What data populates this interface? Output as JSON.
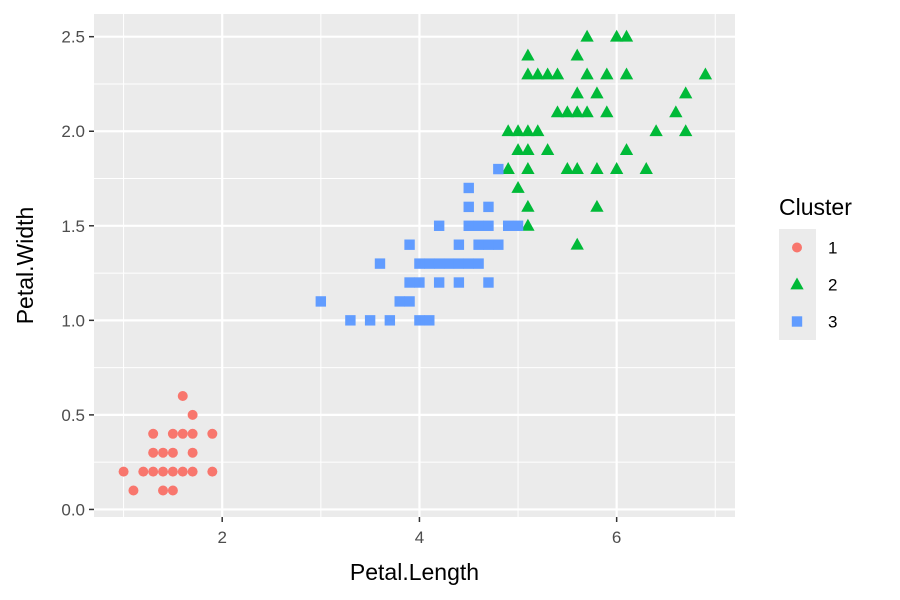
{
  "chart_data": {
    "type": "scatter",
    "title": "",
    "xlabel": "Petal.Length",
    "ylabel": "Petal.Width",
    "xlim": [
      0.7,
      7.2
    ],
    "ylim": [
      -0.04,
      2.62
    ],
    "x_ticks": [
      2,
      4,
      6
    ],
    "y_ticks": [
      0.0,
      0.5,
      1.0,
      1.5,
      2.0,
      2.5
    ],
    "x_tick_labels": [
      "2",
      "4",
      "6"
    ],
    "y_tick_labels": [
      "0.0",
      "0.5",
      "1.0",
      "1.5",
      "2.0",
      "2.5"
    ],
    "grid": true,
    "background": "#ebebeb",
    "legend": {
      "title": "Cluster",
      "placement": "right",
      "entries": [
        {
          "label": "1",
          "color": "#f8766d",
          "shape": "circle"
        },
        {
          "label": "2",
          "color": "#00ba38",
          "shape": "triangle"
        },
        {
          "label": "3",
          "color": "#619cff",
          "shape": "square"
        }
      ]
    },
    "series": [
      {
        "name": "1",
        "color": "#f8766d",
        "shape": "circle",
        "points": [
          [
            1.0,
            0.2
          ],
          [
            1.1,
            0.1
          ],
          [
            1.2,
            0.2
          ],
          [
            1.3,
            0.2
          ],
          [
            1.3,
            0.3
          ],
          [
            1.3,
            0.4
          ],
          [
            1.4,
            0.1
          ],
          [
            1.4,
            0.2
          ],
          [
            1.4,
            0.3
          ],
          [
            1.5,
            0.1
          ],
          [
            1.5,
            0.2
          ],
          [
            1.5,
            0.3
          ],
          [
            1.5,
            0.4
          ],
          [
            1.6,
            0.2
          ],
          [
            1.6,
            0.4
          ],
          [
            1.6,
            0.6
          ],
          [
            1.7,
            0.2
          ],
          [
            1.7,
            0.3
          ],
          [
            1.7,
            0.4
          ],
          [
            1.7,
            0.5
          ],
          [
            1.9,
            0.2
          ],
          [
            1.9,
            0.4
          ]
        ]
      },
      {
        "name": "2",
        "color": "#00ba38",
        "shape": "triangle",
        "points": [
          [
            4.9,
            1.8
          ],
          [
            4.9,
            2.0
          ],
          [
            5.0,
            1.7
          ],
          [
            5.0,
            1.9
          ],
          [
            5.0,
            2.0
          ],
          [
            5.1,
            1.5
          ],
          [
            5.1,
            1.6
          ],
          [
            5.1,
            1.8
          ],
          [
            5.1,
            1.9
          ],
          [
            5.1,
            2.0
          ],
          [
            5.1,
            2.3
          ],
          [
            5.1,
            2.4
          ],
          [
            5.2,
            2.0
          ],
          [
            5.2,
            2.3
          ],
          [
            5.3,
            1.9
          ],
          [
            5.3,
            2.3
          ],
          [
            5.4,
            2.1
          ],
          [
            5.4,
            2.3
          ],
          [
            5.5,
            1.8
          ],
          [
            5.5,
            2.1
          ],
          [
            5.6,
            1.4
          ],
          [
            5.6,
            1.8
          ],
          [
            5.6,
            2.1
          ],
          [
            5.6,
            2.2
          ],
          [
            5.6,
            2.4
          ],
          [
            5.7,
            2.1
          ],
          [
            5.7,
            2.3
          ],
          [
            5.7,
            2.5
          ],
          [
            5.8,
            1.6
          ],
          [
            5.8,
            1.8
          ],
          [
            5.8,
            2.2
          ],
          [
            5.9,
            2.1
          ],
          [
            5.9,
            2.3
          ],
          [
            6.0,
            1.8
          ],
          [
            6.0,
            2.5
          ],
          [
            6.1,
            1.9
          ],
          [
            6.1,
            2.3
          ],
          [
            6.1,
            2.5
          ],
          [
            6.3,
            1.8
          ],
          [
            6.4,
            2.0
          ],
          [
            6.6,
            2.1
          ],
          [
            6.7,
            2.0
          ],
          [
            6.7,
            2.2
          ],
          [
            6.9,
            2.3
          ]
        ]
      },
      {
        "name": "3",
        "color": "#619cff",
        "shape": "square",
        "points": [
          [
            3.0,
            1.1
          ],
          [
            3.3,
            1.0
          ],
          [
            3.5,
            1.0
          ],
          [
            3.6,
            1.3
          ],
          [
            3.7,
            1.0
          ],
          [
            3.8,
            1.1
          ],
          [
            3.9,
            1.1
          ],
          [
            3.9,
            1.2
          ],
          [
            3.9,
            1.4
          ],
          [
            4.0,
            1.0
          ],
          [
            4.0,
            1.2
          ],
          [
            4.0,
            1.3
          ],
          [
            4.1,
            1.0
          ],
          [
            4.1,
            1.3
          ],
          [
            4.2,
            1.2
          ],
          [
            4.2,
            1.3
          ],
          [
            4.2,
            1.5
          ],
          [
            4.3,
            1.3
          ],
          [
            4.4,
            1.2
          ],
          [
            4.4,
            1.3
          ],
          [
            4.4,
            1.4
          ],
          [
            4.5,
            1.3
          ],
          [
            4.5,
            1.5
          ],
          [
            4.5,
            1.6
          ],
          [
            4.5,
            1.7
          ],
          [
            4.6,
            1.3
          ],
          [
            4.6,
            1.4
          ],
          [
            4.6,
            1.5
          ],
          [
            4.7,
            1.2
          ],
          [
            4.7,
            1.4
          ],
          [
            4.7,
            1.5
          ],
          [
            4.7,
            1.6
          ],
          [
            4.8,
            1.4
          ],
          [
            4.8,
            1.8
          ],
          [
            4.9,
            1.5
          ],
          [
            5.0,
            1.5
          ]
        ]
      }
    ]
  }
}
